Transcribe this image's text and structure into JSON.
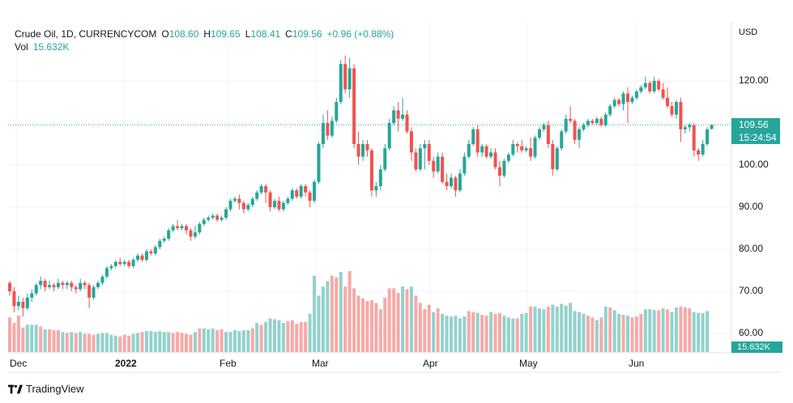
{
  "legend": {
    "symbol": "Crude Oil, 1D, CURRENCYCOM",
    "o_label": "O",
    "o_value": "108.60",
    "h_label": "H",
    "h_value": "109.65",
    "l_label": "L",
    "l_value": "108.41",
    "c_label": "C",
    "c_value": "109.56",
    "change": "+0.96 (+0.88%)",
    "vol_label": "Vol",
    "vol_value": "15.632K"
  },
  "currency": "USD",
  "price_tag": {
    "price": "109.56",
    "countdown": "15:24:54"
  },
  "volume_tag": "15.632K",
  "brand": "TradingView",
  "colors": {
    "up": "#26a69a",
    "down": "#ef5350",
    "up_vol": "#92d2cc",
    "down_vol": "#f7a9a7"
  },
  "chart_data": {
    "type": "candlestick",
    "y_ticks": [
      "120.00",
      "110.00",
      "100.00",
      "90.00",
      "80.00",
      "70.00",
      "60.00"
    ],
    "x_ticks": [
      {
        "label": "Dec",
        "bold": false
      },
      {
        "label": "2022",
        "bold": true
      },
      {
        "label": "Feb",
        "bold": false
      },
      {
        "label": "Mar",
        "bold": false
      },
      {
        "label": "Apr",
        "bold": false
      },
      {
        "label": "May",
        "bold": false
      },
      {
        "label": "Jun",
        "bold": false
      }
    ],
    "ylim": [
      58,
      126
    ],
    "last_price": 109.56,
    "candles": [
      [
        72.0,
        70.0,
        72.5,
        69.0
      ],
      [
        70.0,
        66.5,
        71.0,
        65.0
      ],
      [
        66.5,
        67.5,
        69.0,
        65.5
      ],
      [
        67.5,
        66.0,
        68.5,
        64.0
      ],
      [
        66.0,
        68.5,
        69.5,
        65.5
      ],
      [
        68.5,
        69.5,
        70.5,
        67.5
      ],
      [
        69.5,
        71.5,
        72.0,
        69.0
      ],
      [
        71.5,
        72.5,
        73.5,
        70.5
      ],
      [
        72.5,
        71.0,
        73.0,
        70.0
      ],
      [
        71.0,
        71.5,
        72.5,
        70.5
      ],
      [
        71.5,
        71.0,
        72.0,
        70.0
      ],
      [
        71.0,
        72.0,
        73.0,
        70.5
      ],
      [
        72.0,
        71.5,
        72.5,
        70.5
      ],
      [
        71.5,
        72.0,
        72.5,
        70.5
      ],
      [
        72.0,
        71.0,
        72.5,
        70.0
      ],
      [
        71.0,
        70.5,
        71.5,
        69.5
      ],
      [
        70.5,
        72.0,
        73.0,
        70.0
      ],
      [
        72.0,
        71.5,
        72.5,
        70.5
      ],
      [
        71.5,
        68.5,
        72.0,
        66.0
      ],
      [
        68.5,
        71.0,
        71.5,
        68.0
      ],
      [
        71.0,
        72.0,
        72.5,
        70.5
      ],
      [
        72.0,
        73.5,
        74.0,
        71.5
      ],
      [
        73.5,
        75.5,
        76.0,
        73.0
      ],
      [
        75.5,
        76.0,
        76.5,
        75.0
      ],
      [
        76.0,
        77.0,
        77.5,
        75.5
      ],
      [
        77.0,
        76.5,
        78.0,
        76.0
      ],
      [
        76.5,
        77.0,
        77.5,
        76.0
      ],
      [
        77.0,
        76.0,
        77.5,
        75.5
      ],
      [
        76.0,
        77.5,
        78.0,
        75.5
      ],
      [
        77.5,
        78.5,
        79.0,
        77.0
      ],
      [
        78.5,
        77.5,
        79.0,
        77.0
      ],
      [
        77.5,
        79.5,
        80.0,
        77.0
      ],
      [
        79.5,
        79.0,
        80.0,
        78.5
      ],
      [
        79.0,
        80.5,
        81.0,
        78.5
      ],
      [
        80.5,
        82.0,
        82.5,
        80.0
      ],
      [
        82.0,
        82.5,
        83.0,
        81.5
      ],
      [
        82.5,
        84.5,
        85.0,
        82.0
      ],
      [
        84.5,
        85.5,
        86.0,
        84.0
      ],
      [
        85.5,
        85.0,
        87.0,
        84.5
      ],
      [
        85.0,
        85.5,
        86.0,
        84.5
      ],
      [
        85.5,
        84.5,
        86.0,
        83.5
      ],
      [
        84.5,
        83.0,
        85.0,
        82.0
      ],
      [
        83.0,
        84.0,
        85.5,
        82.5
      ],
      [
        84.0,
        86.0,
        86.5,
        83.5
      ],
      [
        86.0,
        87.0,
        87.5,
        85.5
      ],
      [
        87.0,
        87.5,
        88.0,
        86.5
      ],
      [
        87.5,
        88.0,
        88.5,
        87.0
      ],
      [
        88.0,
        87.0,
        88.5,
        86.5
      ],
      [
        87.0,
        87.5,
        88.0,
        86.5
      ],
      [
        87.5,
        89.5,
        90.0,
        87.0
      ],
      [
        89.5,
        91.5,
        92.0,
        89.0
      ],
      [
        91.5,
        92.0,
        92.5,
        91.0
      ],
      [
        92.0,
        91.0,
        93.0,
        89.5
      ],
      [
        91.0,
        89.5,
        91.5,
        88.5
      ],
      [
        89.5,
        90.5,
        91.0,
        89.0
      ],
      [
        90.5,
        92.0,
        92.5,
        90.0
      ],
      [
        92.0,
        93.5,
        94.0,
        91.5
      ],
      [
        93.5,
        95.0,
        95.5,
        93.0
      ],
      [
        95.0,
        93.5,
        95.5,
        91.0
      ],
      [
        93.5,
        90.0,
        94.0,
        89.0
      ],
      [
        90.0,
        91.5,
        92.0,
        89.5
      ],
      [
        91.5,
        89.5,
        92.5,
        89.0
      ],
      [
        89.5,
        91.0,
        91.5,
        89.0
      ],
      [
        91.0,
        92.0,
        92.5,
        90.5
      ],
      [
        92.0,
        94.0,
        94.5,
        91.5
      ],
      [
        94.0,
        92.5,
        94.5,
        92.0
      ],
      [
        92.5,
        95.0,
        95.5,
        92.0
      ],
      [
        95.0,
        93.5,
        95.5,
        92.5
      ],
      [
        93.5,
        91.5,
        94.0,
        90.0
      ],
      [
        91.5,
        96.0,
        96.5,
        91.0
      ],
      [
        96.0,
        105.0,
        105.5,
        95.5
      ],
      [
        105.0,
        110.0,
        112.0,
        104.0
      ],
      [
        110.0,
        107.0,
        113.0,
        106.0
      ],
      [
        107.0,
        110.5,
        111.5,
        106.5
      ],
      [
        110.5,
        115.0,
        116.0,
        110.0
      ],
      [
        115.0,
        124.0,
        125.0,
        114.5
      ],
      [
        124.0,
        118.0,
        126.0,
        117.0
      ],
      [
        118.0,
        123.0,
        125.5,
        116.0
      ],
      [
        123.0,
        105.0,
        124.0,
        104.0
      ],
      [
        105.0,
        102.0,
        108.0,
        100.0
      ],
      [
        102.0,
        105.0,
        106.0,
        101.0
      ],
      [
        105.0,
        103.5,
        106.0,
        102.0
      ],
      [
        103.5,
        94.0,
        104.0,
        92.5
      ],
      [
        94.0,
        95.0,
        96.0,
        92.5
      ],
      [
        95.0,
        99.0,
        100.0,
        94.0
      ],
      [
        99.0,
        104.0,
        105.0,
        98.5
      ],
      [
        104.0,
        110.0,
        111.0,
        103.5
      ],
      [
        110.0,
        113.0,
        114.0,
        109.5
      ],
      [
        113.0,
        111.0,
        115.0,
        108.0
      ],
      [
        111.0,
        112.0,
        116.0,
        110.5
      ],
      [
        112.0,
        108.0,
        113.0,
        107.5
      ],
      [
        108.0,
        103.0,
        109.0,
        101.0
      ],
      [
        103.0,
        99.0,
        104.0,
        98.5
      ],
      [
        99.0,
        104.0,
        105.0,
        98.5
      ],
      [
        104.0,
        105.0,
        106.0,
        99.0
      ],
      [
        105.0,
        101.0,
        106.0,
        100.0
      ],
      [
        101.0,
        98.5,
        102.0,
        97.0
      ],
      [
        98.5,
        102.0,
        103.0,
        98.0
      ],
      [
        102.0,
        96.0,
        103.0,
        95.5
      ],
      [
        96.0,
        95.0,
        98.0,
        94.0
      ],
      [
        95.0,
        97.0,
        98.0,
        94.5
      ],
      [
        97.0,
        94.0,
        97.5,
        92.5
      ],
      [
        94.0,
        98.0,
        99.0,
        93.5
      ],
      [
        98.0,
        102.0,
        103.0,
        97.5
      ],
      [
        102.0,
        105.0,
        106.0,
        101.5
      ],
      [
        105.0,
        108.5,
        109.0,
        104.5
      ],
      [
        108.5,
        103.0,
        109.5,
        102.0
      ],
      [
        103.0,
        104.5,
        105.0,
        102.0
      ],
      [
        104.5,
        102.0,
        105.0,
        101.5
      ],
      [
        102.0,
        103.0,
        104.0,
        101.5
      ],
      [
        103.0,
        99.5,
        104.0,
        99.0
      ],
      [
        99.5,
        97.5,
        101.0,
        95.0
      ],
      [
        97.5,
        101.0,
        101.5,
        97.0
      ],
      [
        101.0,
        102.5,
        103.0,
        100.5
      ],
      [
        102.5,
        105.0,
        106.0,
        102.0
      ],
      [
        105.0,
        104.5,
        105.5,
        103.0
      ],
      [
        104.5,
        103.5,
        106.0,
        103.0
      ],
      [
        103.5,
        104.0,
        104.5,
        103.0
      ],
      [
        104.0,
        102.0,
        106.5,
        101.0
      ],
      [
        102.0,
        106.5,
        107.0,
        101.5
      ],
      [
        106.5,
        108.5,
        109.0,
        106.0
      ],
      [
        108.5,
        109.5,
        110.0,
        108.0
      ],
      [
        109.5,
        105.0,
        110.5,
        104.0
      ],
      [
        105.0,
        99.0,
        106.0,
        97.5
      ],
      [
        99.0,
        104.0,
        104.5,
        98.5
      ],
      [
        104.0,
        108.0,
        108.5,
        103.5
      ],
      [
        108.0,
        111.0,
        112.0,
        107.5
      ],
      [
        111.0,
        110.5,
        114.0,
        110.0
      ],
      [
        110.5,
        106.0,
        111.0,
        105.0
      ],
      [
        106.0,
        108.5,
        109.0,
        104.0
      ],
      [
        108.5,
        109.5,
        110.0,
        108.0
      ],
      [
        109.5,
        110.5,
        111.0,
        109.0
      ],
      [
        110.5,
        110.0,
        111.0,
        109.5
      ],
      [
        110.0,
        111.0,
        111.5,
        109.5
      ],
      [
        111.0,
        109.5,
        111.5,
        109.0
      ],
      [
        109.5,
        112.0,
        112.5,
        109.0
      ],
      [
        112.0,
        114.0,
        114.5,
        111.5
      ],
      [
        114.0,
        115.5,
        116.0,
        113.5
      ],
      [
        115.5,
        114.5,
        116.0,
        114.0
      ],
      [
        114.5,
        117.0,
        117.5,
        113.0
      ],
      [
        117.0,
        115.0,
        118.5,
        110.0
      ],
      [
        115.0,
        116.0,
        116.5,
        114.5
      ],
      [
        116.0,
        117.5,
        118.0,
        115.5
      ],
      [
        117.5,
        118.5,
        119.0,
        117.0
      ],
      [
        118.5,
        119.5,
        121.0,
        118.0
      ],
      [
        119.5,
        117.5,
        120.0,
        117.0
      ],
      [
        117.5,
        120.0,
        121.0,
        117.0
      ],
      [
        120.0,
        118.0,
        120.5,
        117.5
      ],
      [
        118.0,
        116.0,
        119.5,
        115.5
      ],
      [
        116.0,
        114.0,
        118.5,
        113.5
      ],
      [
        114.0,
        112.0,
        115.0,
        111.5
      ],
      [
        112.0,
        115.0,
        115.5,
        111.0
      ],
      [
        115.0,
        108.5,
        116.0,
        105.5
      ],
      [
        108.5,
        109.0,
        109.5,
        107.5
      ],
      [
        109.0,
        109.5,
        110.0,
        108.0
      ],
      [
        109.5,
        103.5,
        110.0,
        102.0
      ],
      [
        103.5,
        102.5,
        104.0,
        101.0
      ],
      [
        102.5,
        105.0,
        106.0,
        102.0
      ],
      [
        105.0,
        108.5,
        109.0,
        104.5
      ],
      [
        108.6,
        109.56,
        109.65,
        108.41
      ]
    ],
    "volumes": [
      [
        38,
        0
      ],
      [
        32,
        0
      ],
      [
        40,
        0
      ],
      [
        27,
        0
      ],
      [
        30,
        1
      ],
      [
        30,
        1
      ],
      [
        30,
        1
      ],
      [
        28,
        0
      ],
      [
        25,
        1
      ],
      [
        25,
        0
      ],
      [
        24,
        0
      ],
      [
        24,
        0
      ],
      [
        22,
        1
      ],
      [
        21,
        0
      ],
      [
        22,
        1
      ],
      [
        21,
        0
      ],
      [
        22,
        1
      ],
      [
        20,
        0
      ],
      [
        20,
        0
      ],
      [
        19,
        0
      ],
      [
        20,
        1
      ],
      [
        21,
        1
      ],
      [
        21,
        1
      ],
      [
        19,
        1
      ],
      [
        18,
        1
      ],
      [
        17,
        0
      ],
      [
        19,
        0
      ],
      [
        18,
        0
      ],
      [
        20,
        1
      ],
      [
        21,
        1
      ],
      [
        22,
        0
      ],
      [
        23,
        1
      ],
      [
        23,
        1
      ],
      [
        22,
        1
      ],
      [
        23,
        1
      ],
      [
        22,
        1
      ],
      [
        22,
        1
      ],
      [
        21,
        0
      ],
      [
        22,
        0
      ],
      [
        21,
        0
      ],
      [
        20,
        0
      ],
      [
        19,
        0
      ],
      [
        22,
        1
      ],
      [
        26,
        0
      ],
      [
        26,
        1
      ],
      [
        25,
        1
      ],
      [
        26,
        1
      ],
      [
        24,
        0
      ],
      [
        25,
        0
      ],
      [
        22,
        1
      ],
      [
        22,
        1
      ],
      [
        24,
        1
      ],
      [
        23,
        1
      ],
      [
        24,
        1
      ],
      [
        24,
        1
      ],
      [
        26,
        0
      ],
      [
        32,
        1
      ],
      [
        30,
        0
      ],
      [
        33,
        1
      ],
      [
        37,
        1
      ],
      [
        36,
        1
      ],
      [
        35,
        1
      ],
      [
        32,
        1
      ],
      [
        34,
        0
      ],
      [
        35,
        0
      ],
      [
        31,
        0
      ],
      [
        33,
        0
      ],
      [
        33,
        0
      ],
      [
        42,
        1
      ],
      [
        84,
        1
      ],
      [
        62,
        1
      ],
      [
        72,
        1
      ],
      [
        78,
        1
      ],
      [
        84,
        0
      ],
      [
        82,
        0
      ],
      [
        88,
        1
      ],
      [
        72,
        0
      ],
      [
        89,
        0
      ],
      [
        70,
        0
      ],
      [
        62,
        0
      ],
      [
        59,
        0
      ],
      [
        56,
        0
      ],
      [
        57,
        0
      ],
      [
        54,
        0
      ],
      [
        47,
        0
      ],
      [
        60,
        0
      ],
      [
        70,
        0
      ],
      [
        70,
        0
      ],
      [
        65,
        0
      ],
      [
        72,
        1
      ],
      [
        69,
        0
      ],
      [
        72,
        1
      ],
      [
        62,
        0
      ],
      [
        54,
        0
      ],
      [
        47,
        0
      ],
      [
        52,
        0
      ],
      [
        44,
        1
      ],
      [
        48,
        0
      ],
      [
        42,
        1
      ],
      [
        40,
        1
      ],
      [
        39,
        1
      ],
      [
        40,
        1
      ],
      [
        37,
        1
      ],
      [
        39,
        1
      ],
      [
        45,
        0
      ],
      [
        44,
        0
      ],
      [
        43,
        1
      ],
      [
        41,
        0
      ],
      [
        40,
        0
      ],
      [
        44,
        1
      ],
      [
        42,
        0
      ],
      [
        43,
        0
      ],
      [
        40,
        1
      ],
      [
        38,
        1
      ],
      [
        37,
        1
      ],
      [
        37,
        0
      ],
      [
        42,
        1
      ],
      [
        43,
        1
      ],
      [
        50,
        0
      ],
      [
        50,
        1
      ],
      [
        48,
        1
      ],
      [
        47,
        1
      ],
      [
        50,
        0
      ],
      [
        52,
        1
      ],
      [
        50,
        1
      ],
      [
        53,
        1
      ],
      [
        51,
        1
      ],
      [
        54,
        1
      ],
      [
        45,
        1
      ],
      [
        44,
        1
      ],
      [
        42,
        1
      ],
      [
        40,
        0
      ],
      [
        38,
        0
      ],
      [
        35,
        1
      ],
      [
        38,
        0
      ],
      [
        50,
        1
      ],
      [
        49,
        0
      ],
      [
        46,
        1
      ],
      [
        42,
        1
      ],
      [
        41,
        0
      ],
      [
        40,
        1
      ],
      [
        38,
        0
      ],
      [
        39,
        0
      ],
      [
        42,
        0
      ],
      [
        47,
        1
      ],
      [
        47,
        1
      ],
      [
        46,
        1
      ],
      [
        46,
        0
      ],
      [
        48,
        1
      ],
      [
        47,
        0
      ],
      [
        44,
        1
      ],
      [
        49,
        1
      ],
      [
        50,
        0
      ],
      [
        49,
        0
      ],
      [
        48,
        0
      ],
      [
        44,
        1
      ],
      [
        43,
        1
      ],
      [
        43,
        1
      ],
      [
        45,
        1
      ]
    ]
  }
}
